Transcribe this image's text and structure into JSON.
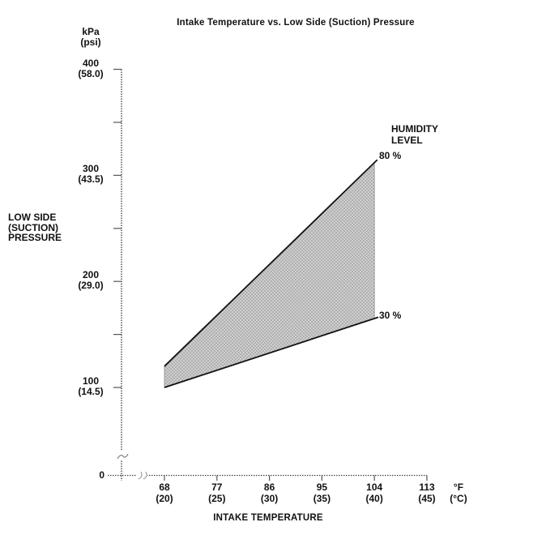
{
  "title": "Intake Temperature vs. Low Side (Suction) Pressure",
  "y_axis": {
    "unit": "kPa\n(psi)",
    "axis_title": "LOW SIDE\n(SUCTION)\nPRESSURE",
    "origin_label": "0",
    "ticks": [
      {
        "kpa": 400,
        "label": "400",
        "sub": "(58.0)"
      },
      {
        "kpa": 300,
        "label": "300",
        "sub": "(43.5)"
      },
      {
        "kpa": 200,
        "label": "200",
        "sub": "(29.0)"
      },
      {
        "kpa": 100,
        "label": "100",
        "sub": "(14.5)"
      }
    ],
    "minor_ticks_kpa": [
      350,
      250,
      150
    ]
  },
  "x_axis": {
    "axis_title": "INTAKE TEMPERATURE",
    "unit": "°F\n(°C)",
    "ticks": [
      {
        "f": 68,
        "label": "68",
        "sub": "(20)"
      },
      {
        "f": 77,
        "label": "77",
        "sub": "(25)"
      },
      {
        "f": 86,
        "label": "86",
        "sub": "(30)"
      },
      {
        "f": 95,
        "label": "95",
        "sub": "(35)"
      },
      {
        "f": 104,
        "label": "104",
        "sub": "(40)"
      },
      {
        "f": 113,
        "label": "113",
        "sub": "(45)"
      }
    ]
  },
  "legend": {
    "title": "HUMIDITY\nLEVEL",
    "upper_label": "80 %",
    "lower_label": "30 %"
  },
  "colors": {
    "band_fill_base": "#cfcfcf",
    "band_fill_dot": "#9a9a9a",
    "line": "#111111",
    "axis": "#444444",
    "tick": "#555555"
  },
  "chart_data": {
    "type": "area",
    "title": "Intake Temperature vs. Low Side (Suction) Pressure",
    "xlabel": "INTAKE TEMPERATURE",
    "ylabel": "LOW SIDE (SUCTION) PRESSURE",
    "x_unit": "°F (°C)",
    "y_unit": "kPa (psi)",
    "xlim_f": [
      60,
      113
    ],
    "ylim_kpa": [
      0,
      400
    ],
    "x_ticks_f": [
      68,
      77,
      86,
      95,
      104,
      113
    ],
    "x_ticks_c": [
      20,
      25,
      30,
      35,
      40,
      45
    ],
    "y_ticks_kpa": [
      100,
      200,
      300,
      400
    ],
    "y_ticks_psi": [
      14.5,
      29.0,
      43.5,
      58.0
    ],
    "axis_breaks": [
      "x-axis near origin",
      "y-axis near origin"
    ],
    "series": [
      {
        "name": "80 %",
        "points_f_kpa": [
          [
            68,
            120
          ],
          [
            104,
            312
          ]
        ]
      },
      {
        "name": "30 %",
        "points_f_kpa": [
          [
            68,
            100
          ],
          [
            104,
            165
          ]
        ]
      }
    ],
    "band": "shaded region between 30 % and 80 % humidity lines from 68°F to 104°F"
  }
}
